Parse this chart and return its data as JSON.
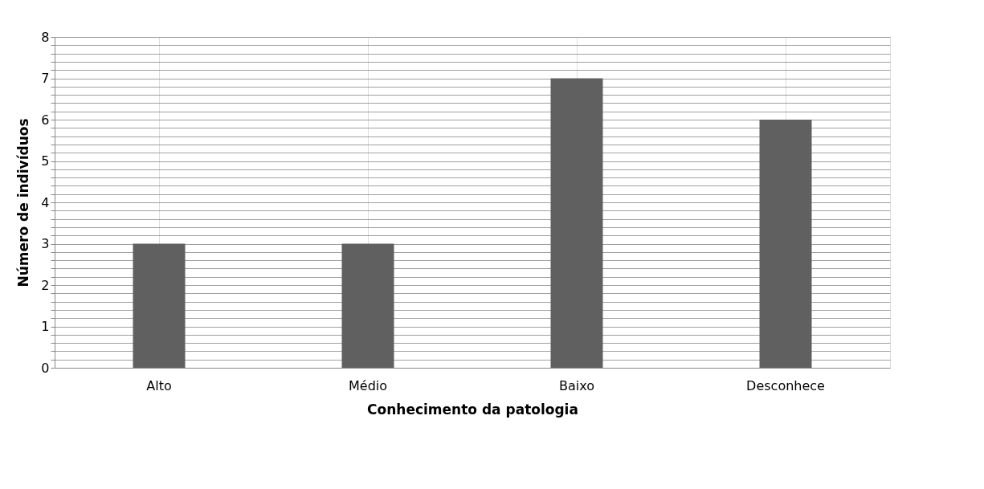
{
  "chart_data": {
    "type": "bar",
    "xlabel": "Conhecimento da patologia",
    "ylabel": "Número de indivíduos",
    "categories": [
      "Alto",
      "Médio",
      "Baixo",
      "Desconhece"
    ],
    "values": [
      3,
      3,
      7,
      6
    ],
    "color": "#606060",
    "ylim": [
      0,
      8
    ],
    "yticks": [
      0,
      {
        "value": 0.2,
        "label": null
      },
      {
        "value": 0.4,
        "label": null
      },
      {
        "value": 0.6,
        "label": null
      },
      {
        "value": 0.8,
        "label": null
      },
      1,
      {
        "value": 1.2,
        "label": null
      },
      {
        "value": 1.4,
        "label": null
      },
      {
        "value": 1.6,
        "label": null
      },
      {
        "value": 1.8,
        "label": null
      },
      2,
      {
        "value": 2.2,
        "label": null
      },
      {
        "value": 2.4,
        "label": null
      },
      {
        "value": 2.6,
        "label": null
      },
      {
        "value": 2.8,
        "label": null
      },
      3,
      {
        "value": 3.2,
        "label": null
      },
      {
        "value": 3.4,
        "label": null
      },
      {
        "value": 3.6,
        "label": null
      },
      {
        "value": 3.8,
        "label": null
      },
      4,
      {
        "value": 4.2,
        "label": null
      },
      {
        "value": 4.4,
        "label": null
      },
      {
        "value": 4.6,
        "label": null
      },
      {
        "value": 4.8,
        "label": null
      },
      5,
      {
        "value": 5.2,
        "label": null
      },
      {
        "value": 5.4,
        "label": null
      },
      {
        "value": 5.6,
        "label": null
      },
      {
        "value": 5.8,
        "label": null
      },
      6,
      {
        "value": 6.2,
        "label": null
      },
      {
        "value": 6.4,
        "label": null
      },
      {
        "value": 6.6,
        "label": null
      },
      {
        "value": 6.8,
        "label": null
      },
      7,
      {
        "value": 7.2,
        "label": null
      },
      {
        "value": 7.4,
        "label": null
      },
      {
        "value": 7.6,
        "label": null
      },
      {
        "value": 7.8,
        "label": null
      },
      8
    ],
    "grid": true
  }
}
